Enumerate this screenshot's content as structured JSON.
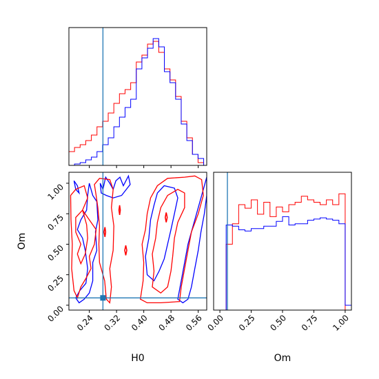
{
  "chart_data": {
    "type": "corner",
    "parameters": [
      "H0",
      "Om"
    ],
    "truth": {
      "H0": 0.28,
      "Om": 0.06
    },
    "colors": {
      "series_a": "#ff0000",
      "series_b": "#0000ff",
      "truth": "#1f77b4"
    },
    "h0_hist": {
      "xlim": [
        0.18,
        0.585
      ],
      "ymax": 1.0,
      "bin_edges": [
        0.18,
        0.1965,
        0.213,
        0.2295,
        0.246,
        0.2625,
        0.279,
        0.2955,
        0.312,
        0.3285,
        0.345,
        0.3615,
        0.378,
        0.3945,
        0.411,
        0.4275,
        0.444,
        0.4605,
        0.477,
        0.4935,
        0.51,
        0.5265,
        0.543,
        0.5595,
        0.576
      ],
      "series_a": [
        0.1,
        0.13,
        0.15,
        0.18,
        0.22,
        0.28,
        0.32,
        0.38,
        0.45,
        0.52,
        0.55,
        0.6,
        0.75,
        0.8,
        0.88,
        0.9,
        0.82,
        0.7,
        0.62,
        0.5,
        0.32,
        0.2,
        0.08,
        0.02
      ],
      "series_b": [
        0.0,
        0.01,
        0.02,
        0.04,
        0.06,
        0.1,
        0.15,
        0.2,
        0.28,
        0.35,
        0.42,
        0.48,
        0.7,
        0.78,
        0.85,
        0.92,
        0.86,
        0.68,
        0.6,
        0.48,
        0.3,
        0.18,
        0.08,
        0.05
      ]
    },
    "om_hist": {
      "xlim": [
        -0.05,
        1.05
      ],
      "ymax": 1.15,
      "bin_edges": [
        0.0,
        0.05,
        0.1,
        0.15,
        0.2,
        0.25,
        0.3,
        0.35,
        0.4,
        0.45,
        0.5,
        0.55,
        0.6,
        0.65,
        0.7,
        0.75,
        0.8,
        0.85,
        0.9,
        0.95,
        1.0,
        1.05
      ],
      "series_a": [
        0.0,
        0.55,
        0.72,
        0.88,
        0.85,
        0.92,
        0.8,
        0.9,
        0.78,
        0.86,
        0.82,
        0.88,
        0.9,
        0.95,
        0.92,
        0.9,
        0.88,
        0.92,
        0.88,
        0.97,
        0.0
      ],
      "series_b": [
        0.0,
        0.71,
        0.7,
        0.67,
        0.66,
        0.68,
        0.68,
        0.7,
        0.7,
        0.74,
        0.78,
        0.71,
        0.72,
        0.72,
        0.75,
        0.76,
        0.77,
        0.76,
        0.75,
        0.72,
        0.04
      ]
    },
    "joint": {
      "xlim": [
        0.18,
        0.585
      ],
      "ylim": [
        -0.04,
        1.09
      ],
      "series_a_contours": [
        [
          [
            0.185,
            0.9
          ],
          [
            0.2,
            0.95
          ],
          [
            0.225,
            0.98
          ],
          [
            0.235,
            0.88
          ],
          [
            0.22,
            0.78
          ],
          [
            0.24,
            0.7
          ],
          [
            0.26,
            0.62
          ],
          [
            0.255,
            0.5
          ],
          [
            0.24,
            0.4
          ],
          [
            0.245,
            0.3
          ],
          [
            0.23,
            0.22
          ],
          [
            0.215,
            0.15
          ],
          [
            0.205,
            0.06
          ],
          [
            0.195,
            0.12
          ],
          [
            0.188,
            0.3
          ],
          [
            0.19,
            0.5
          ],
          [
            0.186,
            0.7
          ],
          [
            0.185,
            0.9
          ]
        ],
        [
          [
            0.22,
            0.78
          ],
          [
            0.2,
            0.72
          ],
          [
            0.2,
            0.6
          ],
          [
            0.215,
            0.5
          ],
          [
            0.205,
            0.42
          ],
          [
            0.215,
            0.34
          ],
          [
            0.228,
            0.42
          ],
          [
            0.235,
            0.55
          ],
          [
            0.232,
            0.66
          ],
          [
            0.22,
            0.78
          ]
        ],
        [
          [
            0.255,
            0.99
          ],
          [
            0.26,
            0.9
          ],
          [
            0.265,
            0.8
          ],
          [
            0.27,
            0.65
          ],
          [
            0.268,
            0.5
          ],
          [
            0.27,
            0.35
          ],
          [
            0.285,
            0.2
          ],
          [
            0.29,
            0.05
          ],
          [
            0.3,
            0.02
          ],
          [
            0.305,
            0.15
          ],
          [
            0.3,
            0.3
          ],
          [
            0.31,
            0.45
          ],
          [
            0.312,
            0.65
          ],
          [
            0.305,
            0.8
          ],
          [
            0.31,
            0.95
          ],
          [
            0.3,
            1.03
          ],
          [
            0.27,
            1.04
          ],
          [
            0.255,
            0.99
          ]
        ],
        [
          [
            0.39,
            0.05
          ],
          [
            0.398,
            0.2
          ],
          [
            0.4,
            0.35
          ],
          [
            0.395,
            0.5
          ],
          [
            0.405,
            0.62
          ],
          [
            0.41,
            0.75
          ],
          [
            0.42,
            0.88
          ],
          [
            0.44,
            0.98
          ],
          [
            0.47,
            1.04
          ],
          [
            0.52,
            1.05
          ],
          [
            0.55,
            1.06
          ],
          [
            0.57,
            1.03
          ],
          [
            0.575,
            0.9
          ],
          [
            0.56,
            0.75
          ],
          [
            0.54,
            0.6
          ],
          [
            0.53,
            0.45
          ],
          [
            0.52,
            0.3
          ],
          [
            0.51,
            0.15
          ],
          [
            0.505,
            0.03
          ],
          [
            0.45,
            0.02
          ],
          [
            0.41,
            0.02
          ],
          [
            0.39,
            0.05
          ]
        ],
        [
          [
            0.425,
            0.15
          ],
          [
            0.43,
            0.28
          ],
          [
            0.425,
            0.42
          ],
          [
            0.435,
            0.55
          ],
          [
            0.44,
            0.68
          ],
          [
            0.45,
            0.8
          ],
          [
            0.47,
            0.9
          ],
          [
            0.5,
            0.95
          ],
          [
            0.52,
            0.92
          ],
          [
            0.52,
            0.8
          ],
          [
            0.5,
            0.68
          ],
          [
            0.49,
            0.55
          ],
          [
            0.485,
            0.4
          ],
          [
            0.48,
            0.28
          ],
          [
            0.47,
            0.15
          ],
          [
            0.45,
            0.1
          ],
          [
            0.425,
            0.15
          ]
        ]
      ],
      "series_a_islands": [
        [
          [
            0.283,
            0.6
          ],
          [
            0.286,
            0.64
          ],
          [
            0.288,
            0.6
          ],
          [
            0.286,
            0.56
          ],
          [
            0.283,
            0.6
          ]
        ],
        [
          [
            0.327,
            0.78
          ],
          [
            0.329,
            0.82
          ],
          [
            0.331,
            0.78
          ],
          [
            0.329,
            0.74
          ],
          [
            0.327,
            0.78
          ]
        ],
        [
          [
            0.344,
            0.45
          ],
          [
            0.347,
            0.49
          ],
          [
            0.35,
            0.45
          ],
          [
            0.347,
            0.41
          ],
          [
            0.344,
            0.45
          ]
        ],
        [
          [
            0.463,
            0.72
          ],
          [
            0.466,
            0.76
          ],
          [
            0.469,
            0.72
          ],
          [
            0.466,
            0.68
          ],
          [
            0.463,
            0.72
          ]
        ]
      ],
      "series_b_contours": [
        [
          [
            0.195,
            1.02
          ],
          [
            0.205,
            0.98
          ],
          [
            0.21,
            0.92
          ],
          [
            0.2,
            0.95
          ],
          [
            0.195,
            1.02
          ]
        ],
        [
          [
            0.24,
            1.0
          ],
          [
            0.25,
            0.9
          ],
          [
            0.262,
            0.85
          ],
          [
            0.265,
            0.7
          ],
          [
            0.258,
            0.6
          ],
          [
            0.262,
            0.45
          ],
          [
            0.25,
            0.35
          ],
          [
            0.25,
            0.2
          ],
          [
            0.24,
            0.1
          ],
          [
            0.225,
            0.05
          ],
          [
            0.21,
            0.02
          ],
          [
            0.2,
            0.06
          ],
          [
            0.212,
            0.12
          ],
          [
            0.23,
            0.18
          ],
          [
            0.235,
            0.3
          ],
          [
            0.228,
            0.45
          ],
          [
            0.22,
            0.55
          ],
          [
            0.205,
            0.62
          ],
          [
            0.215,
            0.7
          ],
          [
            0.232,
            0.78
          ],
          [
            0.235,
            0.9
          ],
          [
            0.24,
            1.0
          ]
        ],
        [
          [
            0.272,
            1.0
          ],
          [
            0.28,
            0.95
          ],
          [
            0.288,
            1.05
          ],
          [
            0.3,
            1.0
          ],
          [
            0.31,
            0.95
          ],
          [
            0.318,
            1.02
          ],
          [
            0.33,
            1.05
          ],
          [
            0.34,
            0.98
          ],
          [
            0.355,
            1.06
          ],
          [
            0.36,
            0.99
          ],
          [
            0.335,
            0.9
          ],
          [
            0.31,
            0.88
          ],
          [
            0.29,
            0.9
          ],
          [
            0.275,
            0.92
          ],
          [
            0.272,
            1.0
          ]
        ],
        [
          [
            0.41,
            0.25
          ],
          [
            0.405,
            0.4
          ],
          [
            0.415,
            0.55
          ],
          [
            0.42,
            0.7
          ],
          [
            0.43,
            0.82
          ],
          [
            0.44,
            0.92
          ],
          [
            0.46,
            0.98
          ],
          [
            0.49,
            0.96
          ],
          [
            0.5,
            0.88
          ],
          [
            0.49,
            0.75
          ],
          [
            0.48,
            0.62
          ],
          [
            0.47,
            0.5
          ],
          [
            0.46,
            0.38
          ],
          [
            0.445,
            0.28
          ],
          [
            0.43,
            0.2
          ],
          [
            0.41,
            0.25
          ]
        ],
        [
          [
            0.5,
            0.05
          ],
          [
            0.51,
            0.2
          ],
          [
            0.52,
            0.35
          ],
          [
            0.53,
            0.5
          ],
          [
            0.545,
            0.65
          ],
          [
            0.56,
            0.8
          ],
          [
            0.575,
            0.95
          ],
          [
            0.585,
            1.05
          ],
          [
            0.585,
            0.9
          ],
          [
            0.578,
            0.75
          ],
          [
            0.568,
            0.6
          ],
          [
            0.56,
            0.45
          ],
          [
            0.55,
            0.3
          ],
          [
            0.54,
            0.15
          ],
          [
            0.53,
            0.05
          ],
          [
            0.515,
            0.02
          ],
          [
            0.5,
            0.05
          ]
        ]
      ]
    }
  }
}
